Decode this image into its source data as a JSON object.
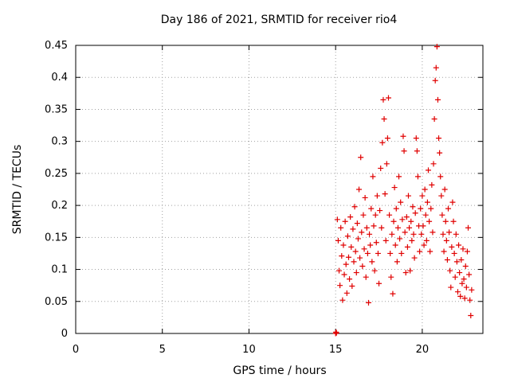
{
  "chart_data": {
    "type": "scatter",
    "title": "Day 186 of 2021, SRMTID for receiver rio4",
    "xlabel": "GPS time / hours",
    "ylabel": "SRMTID / TECUs",
    "xlim": [
      0,
      23.5
    ],
    "ylim": [
      0,
      0.45
    ],
    "xticks": [
      "0",
      "5",
      "10",
      "15",
      "20"
    ],
    "yticks": [
      "0",
      "0.05",
      "0.1",
      "0.15",
      "0.2",
      "0.25",
      "0.3",
      "0.35",
      "0.4",
      "0.45"
    ],
    "grid": true,
    "marker": "+",
    "color": "#e00000",
    "series": [
      {
        "points": [
          [
            15.0,
            0.0
          ],
          [
            15.02,
            0.002
          ],
          [
            15.05,
            0.001
          ],
          [
            15.1,
            0.178
          ],
          [
            15.15,
            0.145
          ],
          [
            15.2,
            0.098
          ],
          [
            15.25,
            0.075
          ],
          [
            15.3,
            0.165
          ],
          [
            15.35,
            0.121
          ],
          [
            15.4,
            0.052
          ],
          [
            15.45,
            0.138
          ],
          [
            15.5,
            0.092
          ],
          [
            15.55,
            0.175
          ],
          [
            15.6,
            0.108
          ],
          [
            15.65,
            0.063
          ],
          [
            15.7,
            0.152
          ],
          [
            15.75,
            0.119
          ],
          [
            15.8,
            0.085
          ],
          [
            15.85,
            0.182
          ],
          [
            15.9,
            0.135
          ],
          [
            15.95,
            0.074
          ],
          [
            16.0,
            0.163
          ],
          [
            16.05,
            0.112
          ],
          [
            16.1,
            0.198
          ],
          [
            16.15,
            0.128
          ],
          [
            16.2,
            0.095
          ],
          [
            16.25,
            0.172
          ],
          [
            16.3,
            0.148
          ],
          [
            16.35,
            0.225
          ],
          [
            16.4,
            0.118
          ],
          [
            16.45,
            0.275
          ],
          [
            16.5,
            0.158
          ],
          [
            16.55,
            0.105
          ],
          [
            16.6,
            0.185
          ],
          [
            16.65,
            0.132
          ],
          [
            16.7,
            0.212
          ],
          [
            16.75,
            0.088
          ],
          [
            16.8,
            0.165
          ],
          [
            16.85,
            0.125
          ],
          [
            16.9,
            0.048
          ],
          [
            16.95,
            0.155
          ],
          [
            17.0,
            0.138
          ],
          [
            17.05,
            0.195
          ],
          [
            17.1,
            0.112
          ],
          [
            17.15,
            0.245
          ],
          [
            17.2,
            0.168
          ],
          [
            17.25,
            0.098
          ],
          [
            17.3,
            0.185
          ],
          [
            17.35,
            0.142
          ],
          [
            17.4,
            0.215
          ],
          [
            17.45,
            0.125
          ],
          [
            17.5,
            0.078
          ],
          [
            17.55,
            0.192
          ],
          [
            17.6,
            0.258
          ],
          [
            17.65,
            0.165
          ],
          [
            17.7,
            0.298
          ],
          [
            17.75,
            0.365
          ],
          [
            17.8,
            0.335
          ],
          [
            17.85,
            0.218
          ],
          [
            17.9,
            0.145
          ],
          [
            17.95,
            0.265
          ],
          [
            18.0,
            0.305
          ],
          [
            18.05,
            0.368
          ],
          [
            18.1,
            0.185
          ],
          [
            18.15,
            0.125
          ],
          [
            18.2,
            0.088
          ],
          [
            18.25,
            0.155
          ],
          [
            18.3,
            0.062
          ],
          [
            18.35,
            0.175
          ],
          [
            18.4,
            0.228
          ],
          [
            18.45,
            0.138
          ],
          [
            18.5,
            0.195
          ],
          [
            18.55,
            0.112
          ],
          [
            18.6,
            0.165
          ],
          [
            18.65,
            0.245
          ],
          [
            18.7,
            0.148
          ],
          [
            18.75,
            0.205
          ],
          [
            18.8,
            0.125
          ],
          [
            18.85,
            0.178
          ],
          [
            18.9,
            0.308
          ],
          [
            18.95,
            0.285
          ],
          [
            19.0,
            0.158
          ],
          [
            19.05,
            0.095
          ],
          [
            19.1,
            0.182
          ],
          [
            19.15,
            0.135
          ],
          [
            19.2,
            0.215
          ],
          [
            19.25,
            0.165
          ],
          [
            19.3,
            0.098
          ],
          [
            19.35,
            0.175
          ],
          [
            19.4,
            0.145
          ],
          [
            19.45,
            0.198
          ],
          [
            19.5,
            0.155
          ],
          [
            19.55,
            0.118
          ],
          [
            19.6,
            0.188
          ],
          [
            19.65,
            0.305
          ],
          [
            19.7,
            0.285
          ],
          [
            19.75,
            0.245
          ],
          [
            19.8,
            0.168
          ],
          [
            19.85,
            0.128
          ],
          [
            19.9,
            0.195
          ],
          [
            19.95,
            0.155
          ],
          [
            20.0,
            0.215
          ],
          [
            20.05,
            0.168
          ],
          [
            20.1,
            0.138
          ],
          [
            20.15,
            0.225
          ],
          [
            20.2,
            0.185
          ],
          [
            20.25,
            0.145
          ],
          [
            20.3,
            0.205
          ],
          [
            20.35,
            0.255
          ],
          [
            20.4,
            0.175
          ],
          [
            20.45,
            0.128
          ],
          [
            20.5,
            0.195
          ],
          [
            20.55,
            0.232
          ],
          [
            20.6,
            0.158
          ],
          [
            20.65,
            0.265
          ],
          [
            20.7,
            0.335
          ],
          [
            20.75,
            0.395
          ],
          [
            20.8,
            0.415
          ],
          [
            20.85,
            0.448
          ],
          [
            20.9,
            0.365
          ],
          [
            20.95,
            0.305
          ],
          [
            21.0,
            0.282
          ],
          [
            21.05,
            0.245
          ],
          [
            21.1,
            0.215
          ],
          [
            21.15,
            0.185
          ],
          [
            21.2,
            0.155
          ],
          [
            21.25,
            0.128
          ],
          [
            21.3,
            0.225
          ],
          [
            21.35,
            0.175
          ],
          [
            21.4,
            0.145
          ],
          [
            21.45,
            0.115
          ],
          [
            21.5,
            0.195
          ],
          [
            21.55,
            0.158
          ],
          [
            21.6,
            0.098
          ],
          [
            21.65,
            0.072
          ],
          [
            21.7,
            0.135
          ],
          [
            21.75,
            0.205
          ],
          [
            21.8,
            0.175
          ],
          [
            21.85,
            0.125
          ],
          [
            21.9,
            0.088
          ],
          [
            21.95,
            0.155
          ],
          [
            22.0,
            0.112
          ],
          [
            22.05,
            0.065
          ],
          [
            22.1,
            0.138
          ],
          [
            22.15,
            0.095
          ],
          [
            22.2,
            0.058
          ],
          [
            22.25,
            0.115
          ],
          [
            22.3,
            0.078
          ],
          [
            22.35,
            0.132
          ],
          [
            22.4,
            0.085
          ],
          [
            22.45,
            0.055
          ],
          [
            22.5,
            0.105
          ],
          [
            22.55,
            0.072
          ],
          [
            22.6,
            0.128
          ],
          [
            22.65,
            0.165
          ],
          [
            22.7,
            0.092
          ],
          [
            22.75,
            0.052
          ],
          [
            22.8,
            0.028
          ],
          [
            22.85,
            0.068
          ]
        ]
      }
    ]
  }
}
